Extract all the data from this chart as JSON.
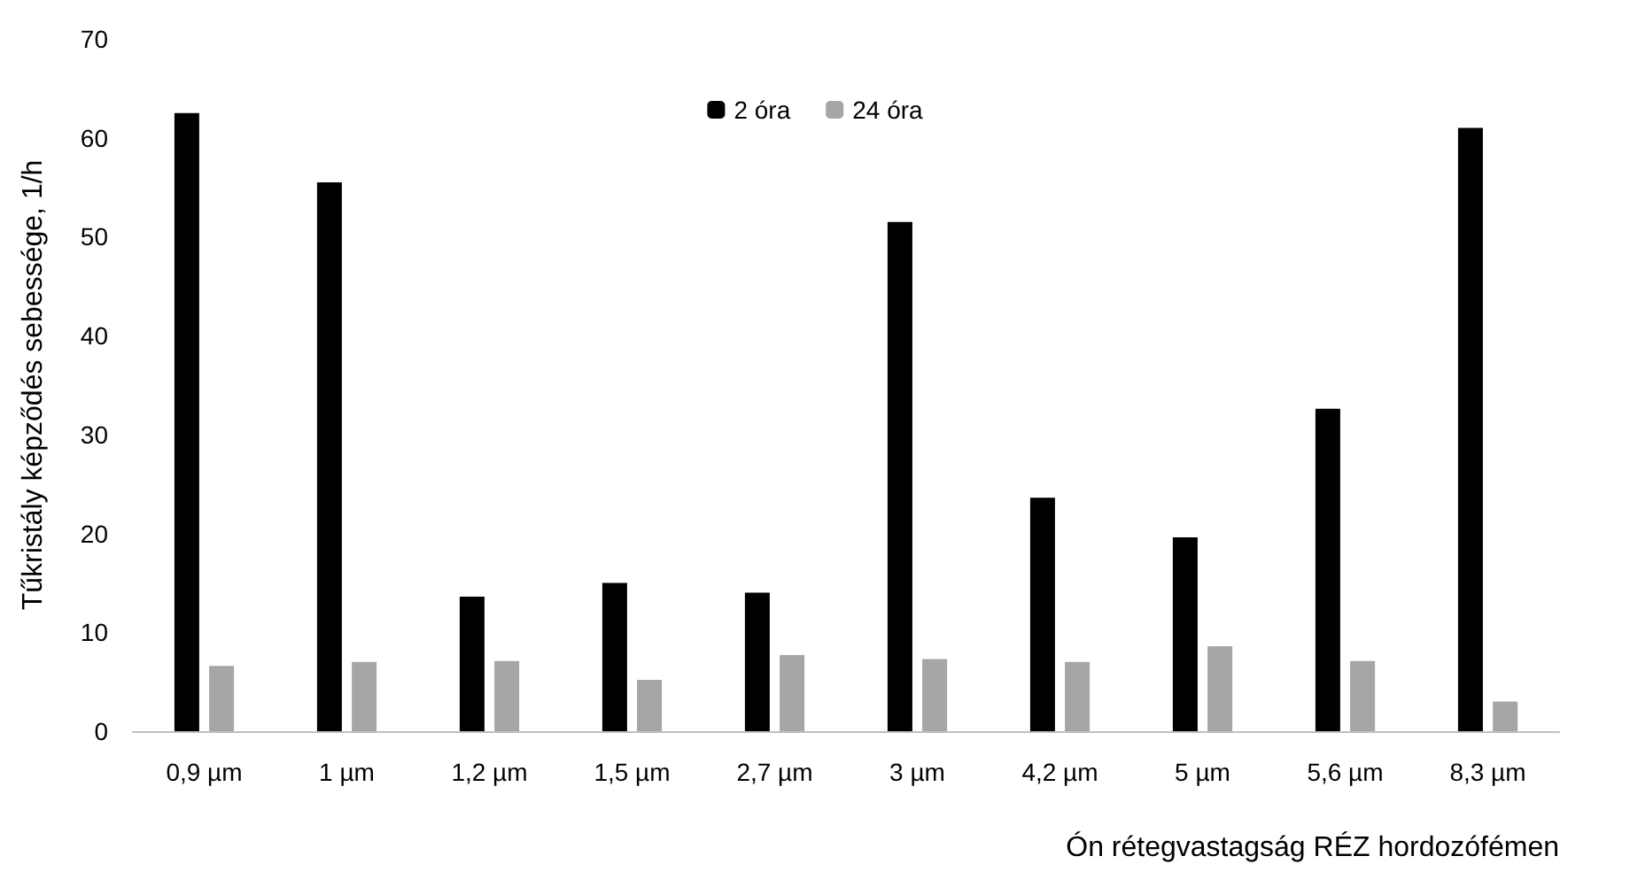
{
  "chart_data": {
    "type": "bar",
    "xlabel": "Ón rétegvastagság RÉZ hordozófémen",
    "ylabel": "Tűkristály képződés sebessége, 1/h",
    "categories": [
      "0,9 µm",
      "1 µm",
      "1,2 µm",
      "1,5 µm",
      "2,7 µm",
      "3 µm",
      "4,2 µm",
      "5 µm",
      "5,6 µm",
      "8,3 µm"
    ],
    "series": [
      {
        "name": "2 óra",
        "color": "#000000",
        "values": [
          62.5,
          55.5,
          13.6,
          15.0,
          14.0,
          51.5,
          23.6,
          19.6,
          32.6,
          61.0
        ]
      },
      {
        "name": "24 óra",
        "color": "#a6a6a6",
        "values": [
          6.6,
          7.0,
          7.1,
          5.2,
          7.7,
          7.3,
          7.0,
          8.6,
          7.1,
          3.0
        ]
      }
    ],
    "ylim": [
      0,
      70
    ],
    "yticks": [
      0,
      10,
      20,
      30,
      40,
      50,
      60,
      70
    ],
    "grid": false,
    "legend": "top"
  }
}
